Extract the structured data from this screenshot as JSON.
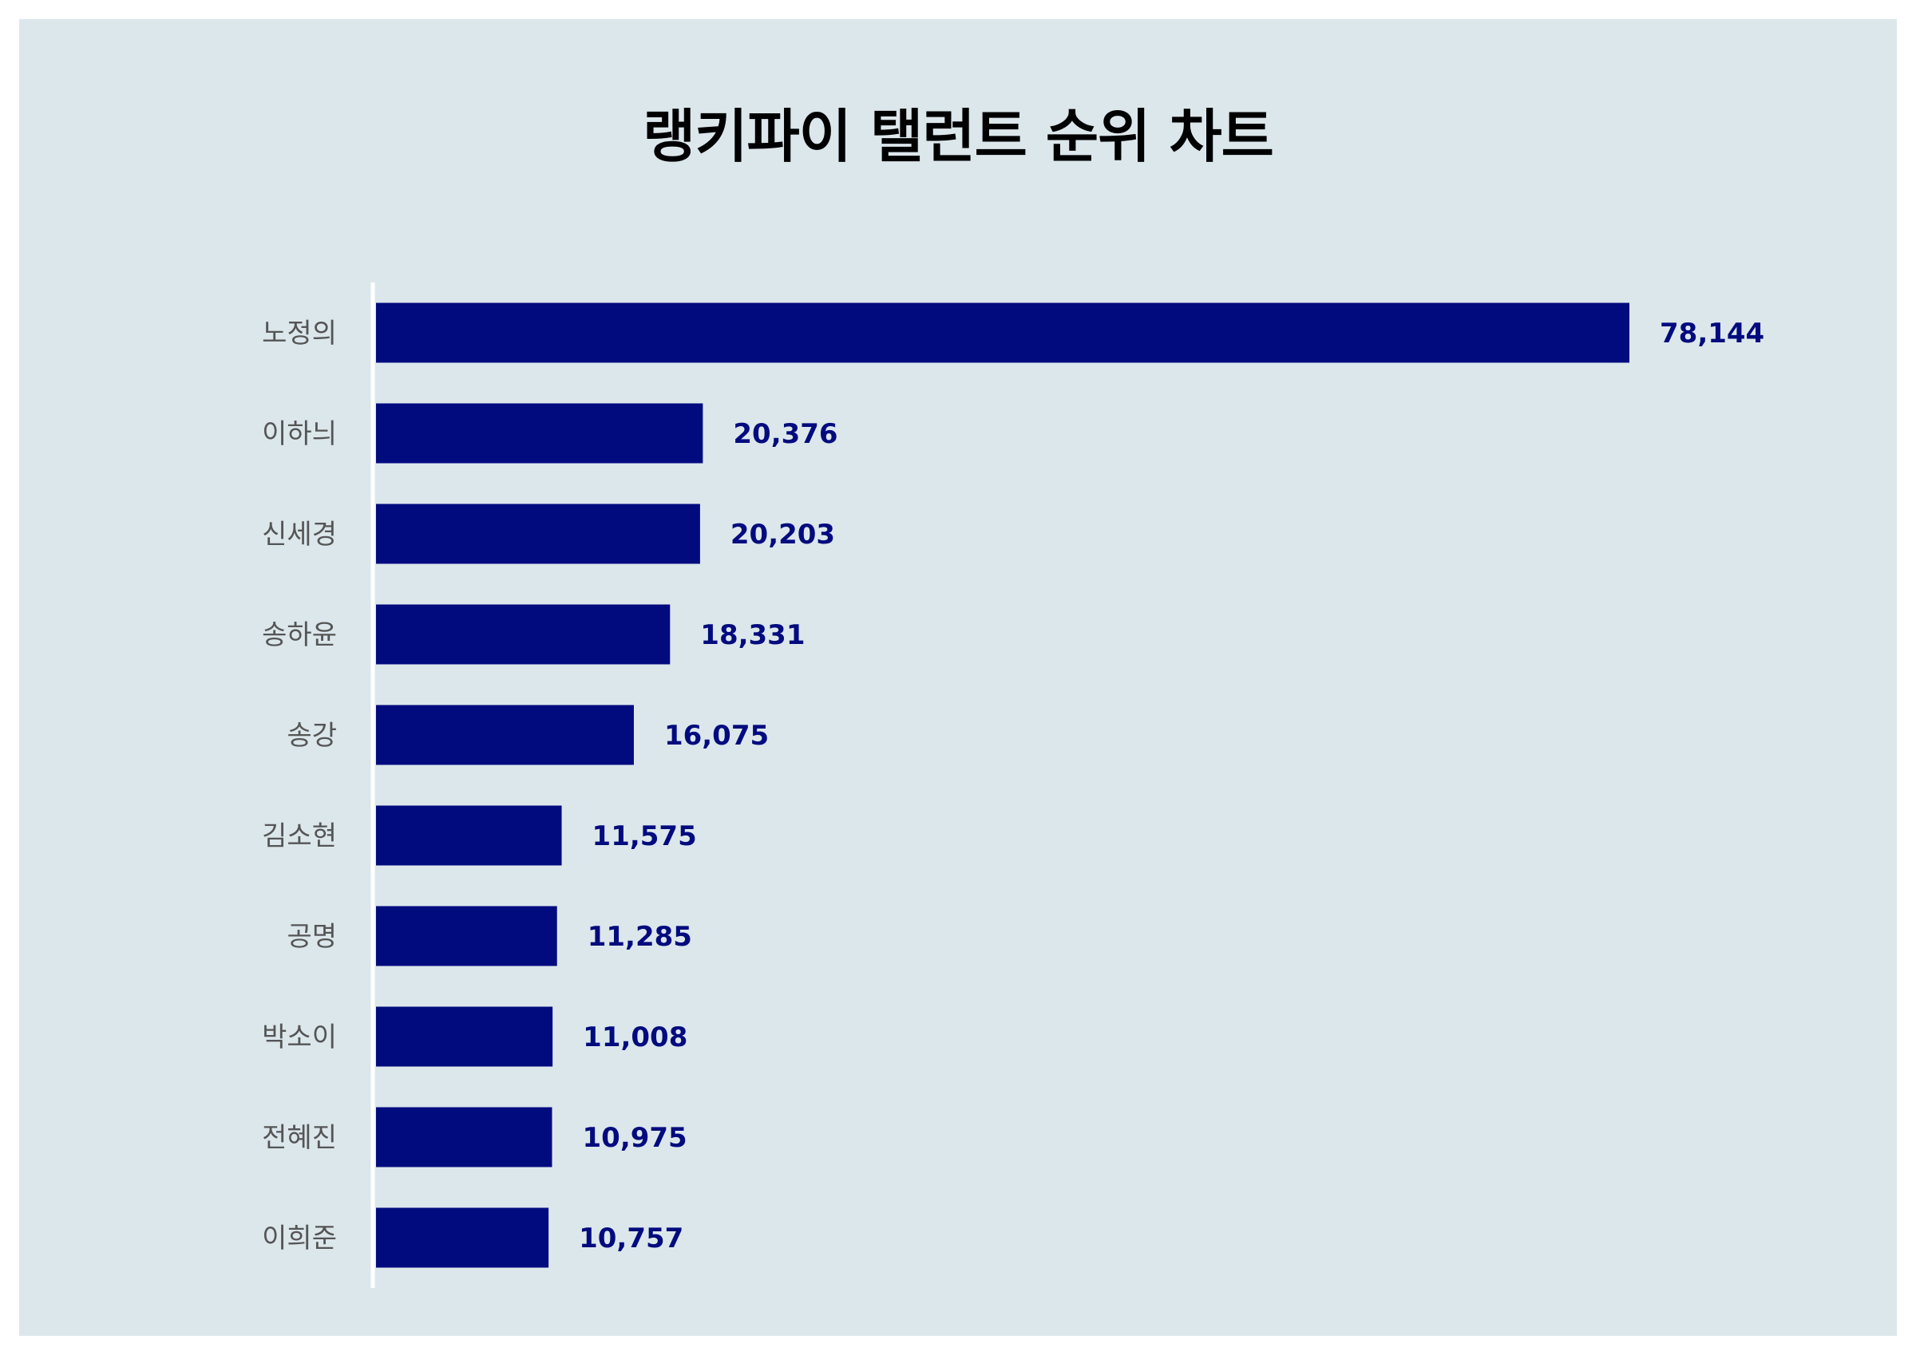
{
  "chart_data": {
    "type": "bar",
    "orientation": "horizontal",
    "title": "랭키파이 탤런트 순위 차트",
    "categories": [
      "노정의",
      "이하늬",
      "신세경",
      "송하윤",
      "송강",
      "김소현",
      "공명",
      "박소이",
      "전혜진",
      "이희준"
    ],
    "values": [
      78144,
      20376,
      20203,
      18331,
      16075,
      11575,
      11285,
      11008,
      10975,
      10757
    ],
    "value_labels": [
      "78,144",
      "20,376",
      "20,203",
      "18,331",
      "16,075",
      "11,575",
      "11,285",
      "11,008",
      "10,975",
      "10,757"
    ],
    "xlim": [
      0,
      80000
    ],
    "grid": false,
    "legend": "none",
    "bar_color": "#020b7e",
    "label_color": "#020b7e",
    "background": "#dce7ec"
  }
}
